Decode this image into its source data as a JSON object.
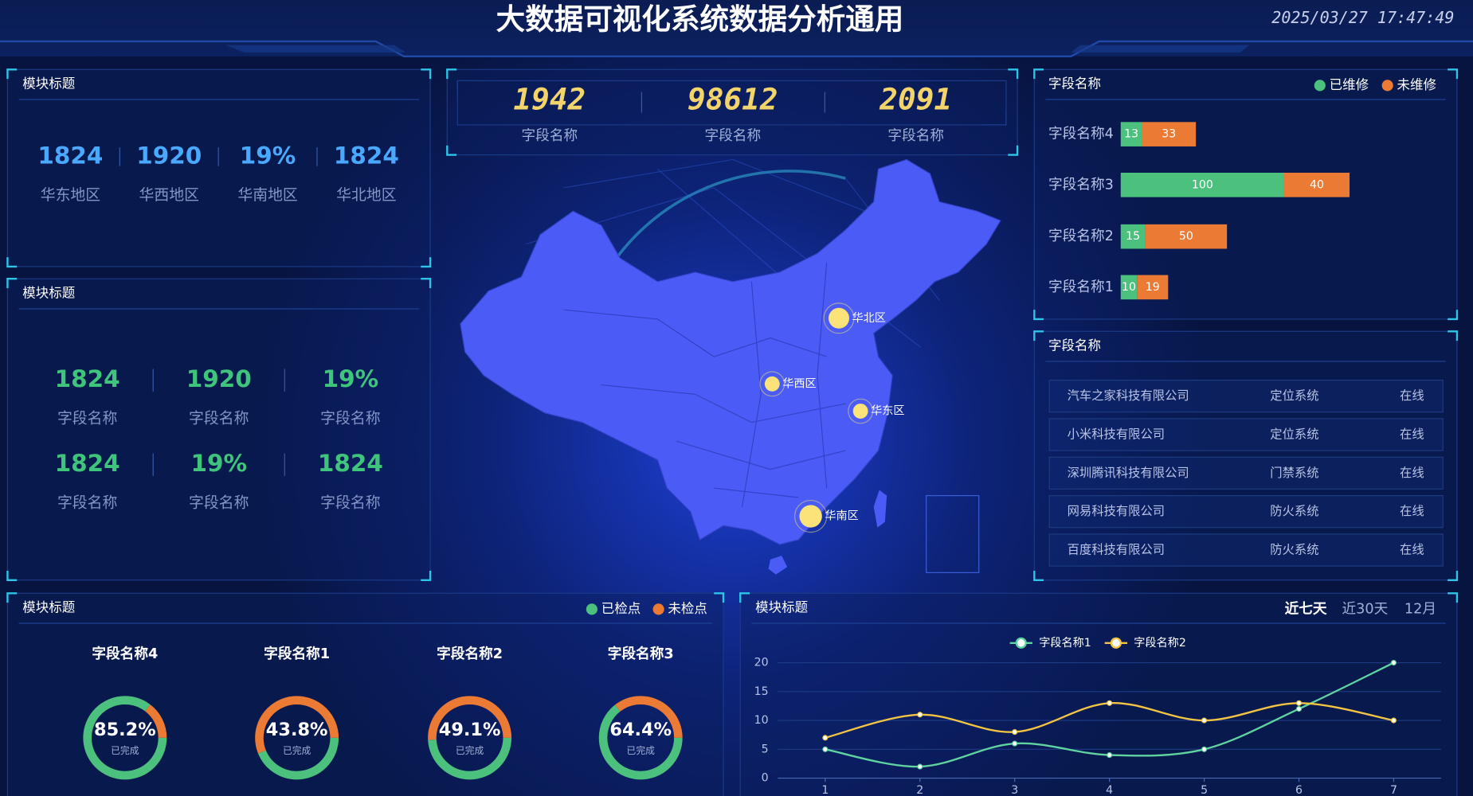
{
  "header": {
    "title": "大数据可视化系统数据分析通用",
    "datetime": "2025/03/27 17:47:49"
  },
  "region_panel": {
    "title": "模块标题",
    "items": [
      {
        "value": "1824",
        "label": "华东地区"
      },
      {
        "value": "1920",
        "label": "华西地区"
      },
      {
        "value": "19%",
        "label": "华南地区"
      },
      {
        "value": "1824",
        "label": "华北地区"
      }
    ]
  },
  "field_panel": {
    "title": "模块标题",
    "items": [
      {
        "value": "1824",
        "label": "字段名称"
      },
      {
        "value": "1920",
        "label": "字段名称"
      },
      {
        "value": "19%",
        "label": "字段名称"
      },
      {
        "value": "1824",
        "label": "字段名称"
      },
      {
        "value": "19%",
        "label": "字段名称"
      },
      {
        "value": "1824",
        "label": "字段名称"
      }
    ]
  },
  "counters": [
    {
      "value": "1942",
      "label": "字段名称"
    },
    {
      "value": "98612",
      "label": "字段名称"
    },
    {
      "value": "2091",
      "label": "字段名称"
    }
  ],
  "map": {
    "labels": [
      "华北区",
      "华西区",
      "华东区",
      "华南区"
    ]
  },
  "table": {
    "title": "字段名称",
    "rows": [
      [
        "汽车之家科技有限公司",
        "定位系统",
        "在线"
      ],
      [
        "小米科技有限公司",
        "定位系统",
        "在线"
      ],
      [
        "深圳腾讯科技有限公司",
        "门禁系统",
        "在线"
      ],
      [
        "网易科技有限公司",
        "防火系统",
        "在线"
      ],
      [
        "百度科技有限公司",
        "防火系统",
        "在线"
      ]
    ]
  },
  "chart_data": [
    {
      "type": "bar",
      "orientation": "horizontal",
      "stacked": true,
      "data_labels": true,
      "legend": "top-right",
      "title": "字段名称",
      "categories": [
        "字段名称4",
        "字段名称3",
        "字段名称2",
        "字段名称1"
      ],
      "series": [
        {
          "name": "已维修",
          "color": "#4cc17d",
          "values": [
            13,
            100,
            15,
            10
          ]
        },
        {
          "name": "未维修",
          "color": "#eb7a34",
          "values": [
            33,
            40,
            50,
            19
          ]
        }
      ]
    },
    {
      "type": "donut",
      "title": "模块标题",
      "legend": "top-right",
      "center_label": "已完成",
      "categories": [
        "字段名称4",
        "字段名称1",
        "字段名称2",
        "字段名称3"
      ],
      "series": [
        {
          "name": "已检点",
          "color": "#4cc17d",
          "values": [
            85.2,
            43.8,
            49.1,
            64.4
          ],
          "value_labels": [
            "85.2%",
            "43.8%",
            "49.1%",
            "64.4%"
          ]
        },
        {
          "name": "未检点",
          "color": "#eb7a34",
          "values": [
            14.8,
            56.2,
            50.9,
            35.6
          ]
        }
      ]
    },
    {
      "type": "line",
      "title": "模块标题",
      "tabs": [
        "近七天",
        "近30天",
        "12月"
      ],
      "legend": "top",
      "smooth": true,
      "grid": true,
      "x": [
        1,
        2,
        3,
        4,
        5,
        6,
        7
      ],
      "xticks": [
        1,
        2,
        3,
        4,
        5,
        6,
        7
      ],
      "xlim": [
        0.5,
        7.5
      ],
      "ylim": [
        0,
        20
      ],
      "yticks": [
        0,
        5,
        10,
        15,
        20
      ],
      "series": [
        {
          "name": "字段名称1",
          "color": "#5fd3a0",
          "values": [
            5,
            2,
            6,
            4,
            5,
            12,
            20
          ]
        },
        {
          "name": "字段名称2",
          "color": "#f4c542",
          "values": [
            7,
            11,
            8,
            13,
            10,
            13,
            10
          ]
        }
      ]
    }
  ]
}
